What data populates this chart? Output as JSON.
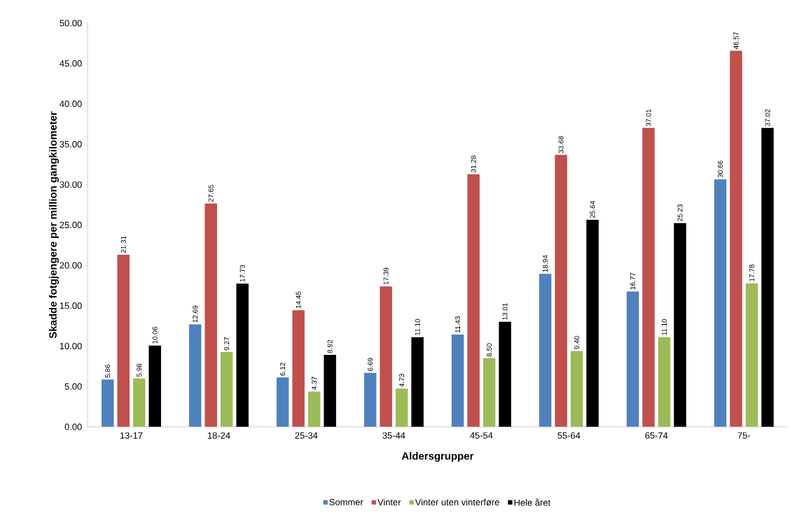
{
  "chart_data": {
    "type": "bar",
    "xlabel": "Aldersgrupper",
    "ylabel": "Skadde fotgjengere per million gangkilometer",
    "categories": [
      "13-17",
      "18-24",
      "25-34",
      "35-44",
      "45-54",
      "55-64",
      "65-74",
      "75-"
    ],
    "series": [
      {
        "name": "Sommer",
        "color": "#4f81bd",
        "values": [
          5.86,
          12.69,
          6.12,
          6.69,
          11.43,
          18.94,
          16.77,
          30.66
        ],
        "value_labels": [
          "5.86",
          "12.69",
          "6.12",
          "6.69",
          "11.43",
          "18.94",
          "16.77",
          "30.66"
        ]
      },
      {
        "name": "Vinter",
        "color": "#c0504d",
        "values": [
          21.31,
          27.65,
          14.45,
          17.39,
          31.28,
          33.68,
          37.01,
          46.57
        ],
        "value_labels": [
          "21.31",
          "27.65",
          "14.45",
          "17.39",
          "31.28",
          "33.68",
          "37.01",
          "46.57"
        ]
      },
      {
        "name": "Vinter uten vinterføre",
        "color": "#9bbb59",
        "values": [
          5.98,
          9.27,
          4.37,
          4.73,
          8.5,
          9.4,
          11.1,
          17.78
        ],
        "value_labels": [
          "5.98",
          "9.27",
          "4.37",
          "4.73",
          "8.50",
          "9.40",
          "11.10",
          "17.78"
        ]
      },
      {
        "name": "Hele året",
        "color": "#000000",
        "values": [
          10.06,
          17.73,
          8.92,
          11.1,
          13.01,
          25.64,
          25.23,
          37.02
        ],
        "value_labels": [
          "10.06",
          "17.73",
          "8.92",
          "11.10",
          "13.01",
          "25.64",
          "25.23",
          "37.02"
        ]
      }
    ],
    "ylim": [
      0,
      50
    ],
    "yticks": [
      {
        "value": 0,
        "label": "0.00"
      },
      {
        "value": 5,
        "label": "5.00"
      },
      {
        "value": 10,
        "label": "10.00"
      },
      {
        "value": 15,
        "label": "15.00"
      },
      {
        "value": 20,
        "label": "20.00"
      },
      {
        "value": 25,
        "label": "25.00"
      },
      {
        "value": 30,
        "label": "30.00"
      },
      {
        "value": 35,
        "label": "35.00"
      },
      {
        "value": 40,
        "label": "40.00"
      },
      {
        "value": 45,
        "label": "45.00"
      },
      {
        "value": 50,
        "label": "50.00"
      }
    ],
    "grid": false,
    "legend": "bottom"
  }
}
